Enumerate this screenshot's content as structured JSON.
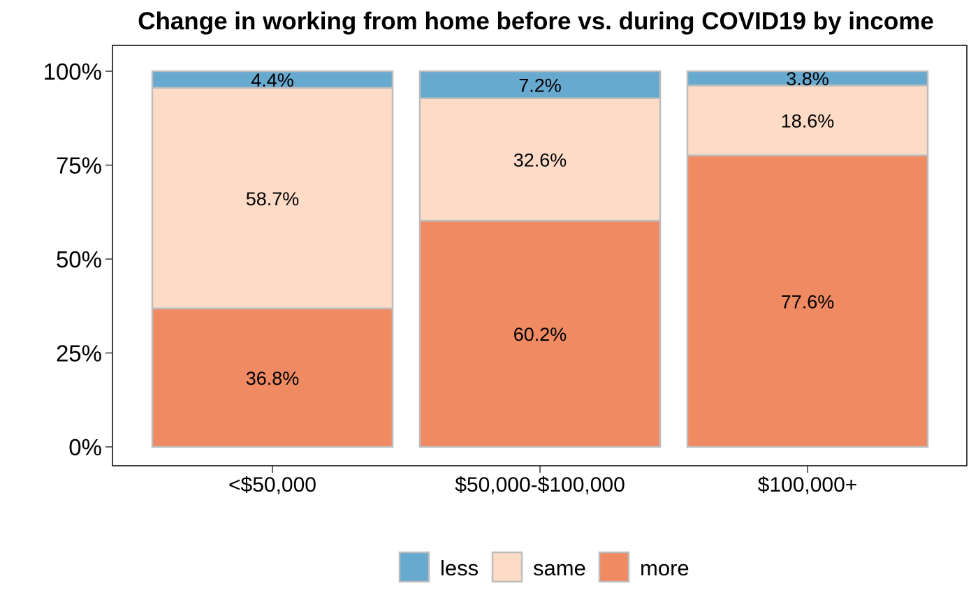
{
  "chart_data": {
    "type": "bar",
    "stacked": true,
    "percent_stacked": true,
    "title": "Change in working from home before vs. during COVID19 by income",
    "xlabel": "",
    "ylabel": "",
    "categories": [
      "<$50,000",
      "$50,000-$100,000",
      "$100,000+"
    ],
    "series": [
      {
        "name": "less",
        "color": "#67a9cf",
        "values": [
          4.4,
          7.2,
          3.8
        ],
        "labels": [
          "4.4%",
          "7.2%",
          "3.8%"
        ]
      },
      {
        "name": "same",
        "color": "#fddbc7",
        "values": [
          58.7,
          32.6,
          18.6
        ],
        "labels": [
          "58.7%",
          "32.6%",
          "18.6%"
        ]
      },
      {
        "name": "more",
        "color": "#ef8a62",
        "values": [
          36.8,
          60.2,
          77.6
        ],
        "labels": [
          "36.8%",
          "60.2%",
          "77.6%"
        ]
      }
    ],
    "ylim": [
      0,
      100
    ],
    "yticks": [
      0,
      25,
      50,
      75,
      100
    ],
    "ytick_labels": [
      "0%",
      "25%",
      "50%",
      "75%",
      "100%"
    ],
    "grid": false,
    "legend_position": "bottom",
    "bar_outline_color": "#bdbdbd",
    "panel_border_color": "#000000"
  }
}
